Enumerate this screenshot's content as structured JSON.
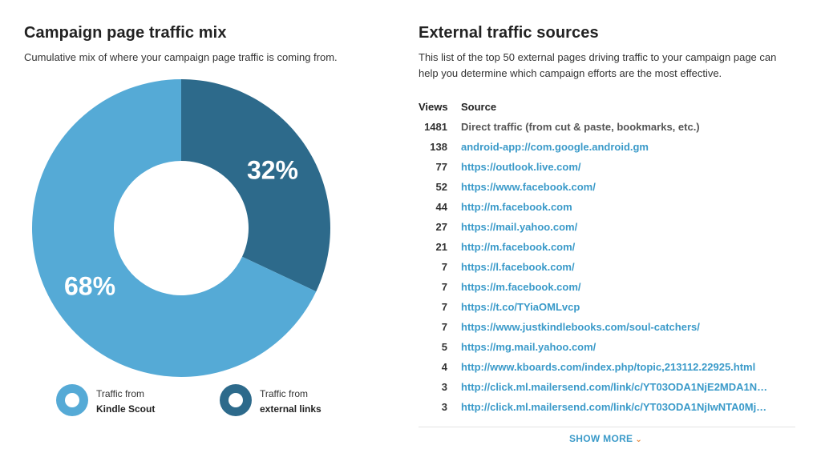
{
  "left": {
    "title": "Campaign page traffic mix",
    "subtitle": "Cumulative mix of where your campaign page traffic is coming from."
  },
  "chart_data": {
    "type": "pie",
    "variant": "donut",
    "series": [
      {
        "name": "Traffic from Kindle Scout",
        "value": 68,
        "label": "68%",
        "color": "#55aad6"
      },
      {
        "name": "Traffic from external links",
        "value": 32,
        "label": "32%",
        "color": "#2d6a8b"
      }
    ],
    "legend_placement": "bottom"
  },
  "legend": [
    {
      "line1": "Traffic from",
      "line2": "Kindle Scout",
      "color": "#55aad6"
    },
    {
      "line1": "Traffic from",
      "line2": "external links",
      "color": "#2d6a8b"
    }
  ],
  "right": {
    "title": "External traffic sources",
    "description": "This list of the top 50 external pages driving traffic to your campaign page can help you determine which campaign efforts are the most effective.",
    "col_views": "Views",
    "col_source": "Source",
    "rows": [
      {
        "views": "1481",
        "source": "Direct traffic (from cut & paste, bookmarks, etc.)",
        "link": false
      },
      {
        "views": "138",
        "source": "android-app://com.google.android.gm",
        "link": true
      },
      {
        "views": "77",
        "source": "https://outlook.live.com/",
        "link": true
      },
      {
        "views": "52",
        "source": "https://www.facebook.com/",
        "link": true
      },
      {
        "views": "44",
        "source": "http://m.facebook.com",
        "link": true
      },
      {
        "views": "27",
        "source": "https://mail.yahoo.com/",
        "link": true
      },
      {
        "views": "21",
        "source": "http://m.facebook.com/",
        "link": true
      },
      {
        "views": "7",
        "source": "https://l.facebook.com/",
        "link": true
      },
      {
        "views": "7",
        "source": "https://m.facebook.com/",
        "link": true
      },
      {
        "views": "7",
        "source": "https://t.co/TYiaOMLvcp",
        "link": true
      },
      {
        "views": "7",
        "source": "https://www.justkindlebooks.com/soul-catchers/",
        "link": true
      },
      {
        "views": "5",
        "source": "https://mg.mail.yahoo.com/",
        "link": true
      },
      {
        "views": "4",
        "source": "http://www.kboards.com/index.php/topic,213112.22925.html",
        "link": true
      },
      {
        "views": "3",
        "source": "http://click.ml.mailersend.com/link/c/YT03ODA1NjE2MDA1N…",
        "link": true
      },
      {
        "views": "3",
        "source": "http://click.ml.mailersend.com/link/c/YT03ODA1NjIwNTA0Mj…",
        "link": true
      }
    ],
    "show_more": "SHOW MORE"
  }
}
